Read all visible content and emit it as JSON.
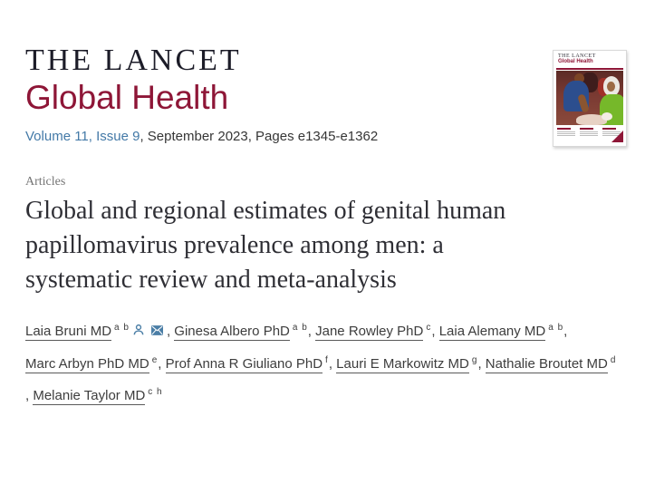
{
  "masthead": {
    "journal_name": "THE LANCET",
    "journal_subtitle": "Global Health",
    "volume_link": "Volume 11, Issue 9",
    "issue_info": ", September 2023, Pages e1345-e1362"
  },
  "section_label": "Articles",
  "article": {
    "title_lines": [
      "Global and regional estimates of genital human",
      "papillomavirus prevalence among men: a",
      "systematic review and meta-analysis"
    ]
  },
  "authors": {
    "lines": [
      {
        "items": [
          {
            "name": "Laia Bruni MD",
            "sup": "a b",
            "icons": [
              "person",
              "envelope"
            ],
            "sep": ", "
          },
          {
            "name": "Ginesa Albero PhD",
            "sup": "a b",
            "sep": ", "
          },
          {
            "name": "Jane Rowley PhD",
            "sup": "c",
            "sep": ", "
          },
          {
            "name": "Laia Alemany MD",
            "sup": "a b",
            "sep": ","
          }
        ]
      },
      {
        "items": [
          {
            "name": "Marc Arbyn PhD MD",
            "sup": "e",
            "sep": ", "
          },
          {
            "name": "Prof Anna R Giuliano PhD",
            "sup": "f",
            "sep": ", "
          },
          {
            "name": "Lauri E Markowitz MD",
            "sup": "g",
            "sep": ", "
          },
          {
            "name": "Nathalie Broutet MD",
            "sup": "d"
          }
        ]
      },
      {
        "items": [
          {
            "pre": ", ",
            "name": "Melanie Taylor MD",
            "sup": "c h"
          }
        ]
      }
    ]
  },
  "cover": {
    "journal_name": "THE LANCET",
    "journal_subtitle": "Global Health"
  },
  "colors": {
    "brand_maroon": "#8e1637",
    "link_blue": "#4379a7",
    "title_gray": "#2f2f35",
    "label_gray": "#757575"
  },
  "icons": {
    "person": "person-icon",
    "envelope": "envelope-icon"
  }
}
